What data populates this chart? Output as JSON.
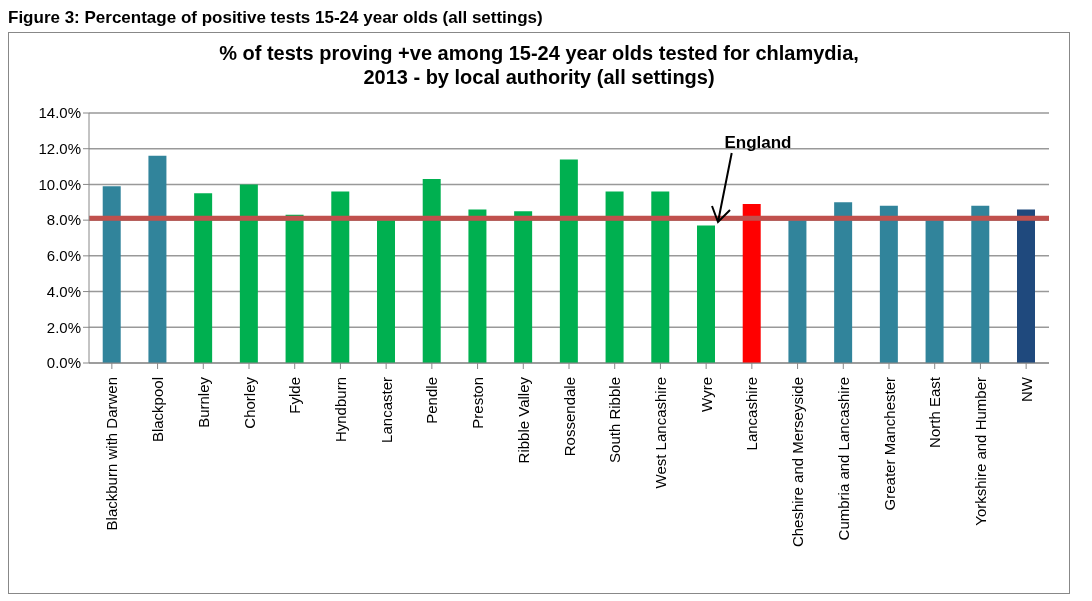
{
  "chart_data": {
    "type": "bar",
    "title": "% of tests proving +ve among 15-24 year olds tested for chlamydia, 2013 - by local authority (all settings)",
    "annotations": [
      "Figure 3: Percentage of positive tests 15-24 year olds (all settings)"
    ],
    "categories": [
      "Blackburn with Darwen",
      "Blackpool",
      "Burnley",
      "Chorley",
      "Fylde",
      "Hyndburn",
      "Lancaster",
      "Pendle",
      "Preston",
      "Ribble Valley",
      "Rossendale",
      "South Ribble",
      "West Lancashire",
      "Wyre",
      "Lancashire",
      "Cheshire and Merseyside",
      "Cumbria and Lancashire",
      "Greater Manchester",
      "North East",
      "Yorkshire and Humber",
      "NW"
    ],
    "values": [
      9.9,
      11.6,
      9.5,
      10.0,
      8.3,
      9.6,
      8.0,
      10.3,
      8.6,
      8.5,
      11.4,
      9.6,
      9.6,
      7.7,
      8.9,
      8.0,
      9.0,
      8.8,
      8.0,
      8.8,
      8.6
    ],
    "colors": [
      "#31849b",
      "#31849b",
      "#00b050",
      "#00b050",
      "#00b050",
      "#00b050",
      "#00b050",
      "#00b050",
      "#00b050",
      "#00b050",
      "#00b050",
      "#00b050",
      "#00b050",
      "#00b050",
      "#ff0000",
      "#31849b",
      "#31849b",
      "#31849b",
      "#31849b",
      "#31849b",
      "#1f497d"
    ],
    "ylim": [
      0,
      14
    ],
    "yticks": [
      {
        "value": 0,
        "label": "0.0%"
      },
      {
        "value": 2,
        "label": "2.0%"
      },
      {
        "value": 4,
        "label": "4.0%"
      },
      {
        "value": 6,
        "label": "6.0%"
      },
      {
        "value": 8,
        "label": "8.0%"
      },
      {
        "value": 10,
        "label": "10.0%"
      },
      {
        "value": 12,
        "label": "12.0%"
      },
      {
        "value": 14,
        "label": "14.0%"
      }
    ],
    "grid": "y",
    "legend": false,
    "ref_lines": [
      {
        "axis": "y",
        "value": 8.1,
        "label": "England",
        "color": "#c0504d"
      }
    ]
  }
}
